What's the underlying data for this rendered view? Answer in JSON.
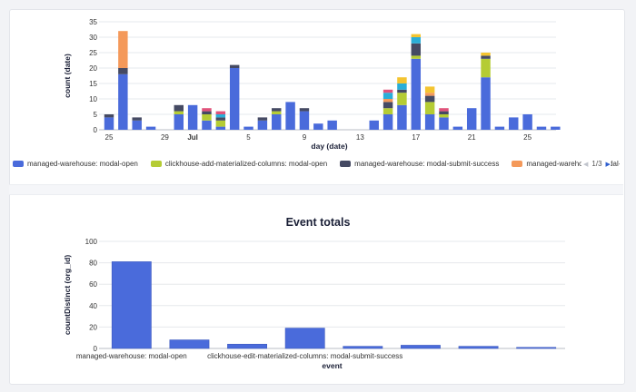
{
  "chart_data": [
    {
      "type": "bar",
      "stacked": true,
      "xlabel": "day (date)",
      "ylabel": "count (date)",
      "ylim": [
        0,
        35
      ],
      "yticks": [
        0,
        5,
        10,
        15,
        20,
        25,
        30,
        35
      ],
      "x_tick_labels": [
        {
          "label": "25",
          "index": 0,
          "bold": false
        },
        {
          "label": "29",
          "index": 4,
          "bold": false
        },
        {
          "label": "Jul",
          "index": 6,
          "bold": true
        },
        {
          "label": "5",
          "index": 10,
          "bold": false
        },
        {
          "label": "9",
          "index": 14,
          "bold": false
        },
        {
          "label": "13",
          "index": 18,
          "bold": false
        },
        {
          "label": "17",
          "index": 22,
          "bold": false
        },
        {
          "label": "21",
          "index": 26,
          "bold": false
        },
        {
          "label": "25",
          "index": 30,
          "bold": false
        }
      ],
      "categories": [
        "Jun 25",
        "Jun 26",
        "Jun 27",
        "Jun 28",
        "Jun 29",
        "Jun 30",
        "Jul 1",
        "Jul 2",
        "Jul 3",
        "Jul 4",
        "Jul 5",
        "Jul 6",
        "Jul 7",
        "Jul 8",
        "Jul 9",
        "Jul 10",
        "Jul 11",
        "Jul 12",
        "Jul 13",
        "Jul 14",
        "Jul 15",
        "Jul 16",
        "Jul 17",
        "Jul 18",
        "Jul 19",
        "Jul 20",
        "Jul 21",
        "Jul 22",
        "Jul 23",
        "Jul 24",
        "Jul 25",
        "Jul 26",
        "Jul 27"
      ],
      "series": [
        {
          "name": "managed-warehouse: modal-open",
          "color": "#4a6bdb",
          "values": [
            4,
            18,
            3,
            1,
            0,
            5,
            8,
            3,
            1,
            20,
            1,
            3,
            5,
            9,
            6,
            2,
            3,
            0,
            0,
            3,
            5,
            8,
            23,
            5,
            4,
            1,
            7,
            17,
            1,
            4,
            5,
            1,
            1
          ]
        },
        {
          "name": "clickhouse-add-materialized-columns: modal-open",
          "color": "#b5cc34",
          "values": [
            0,
            0,
            0,
            0,
            0,
            1,
            0,
            2,
            2,
            0,
            0,
            0,
            1,
            0,
            0,
            0,
            0,
            0,
            0,
            0,
            2,
            4,
            1,
            4,
            1,
            0,
            0,
            6,
            0,
            0,
            0,
            0,
            0
          ]
        },
        {
          "name": "managed-warehouse: modal-submit-success",
          "color": "#454a63",
          "values": [
            1,
            2,
            1,
            0,
            0,
            2,
            0,
            1,
            1,
            1,
            0,
            1,
            1,
            0,
            1,
            0,
            0,
            0,
            0,
            0,
            2,
            1,
            4,
            2,
            1,
            0,
            0,
            1,
            0,
            0,
            0,
            0,
            0
          ]
        },
        {
          "name": "managed-warehouse: modal-submit-error",
          "color": "#f4995a",
          "values": [
            0,
            12,
            0,
            0,
            0,
            0,
            0,
            0,
            0,
            0,
            0,
            0,
            0,
            0,
            0,
            0,
            0,
            0,
            0,
            0,
            1,
            0,
            0,
            1,
            0,
            0,
            0,
            0,
            0,
            0,
            0,
            0,
            0
          ]
        },
        {
          "name": "",
          "color": "#2aaed8",
          "values": [
            0,
            0,
            0,
            0,
            0,
            0,
            0,
            0,
            1,
            0,
            0,
            0,
            0,
            0,
            0,
            0,
            0,
            0,
            0,
            0,
            2,
            2,
            2,
            0,
            0,
            0,
            0,
            0,
            0,
            0,
            0,
            0,
            0
          ]
        },
        {
          "name": "",
          "color": "#f4c430",
          "values": [
            0,
            0,
            0,
            0,
            0,
            0,
            0,
            0,
            0,
            0,
            0,
            0,
            0,
            0,
            0,
            0,
            0,
            0,
            0,
            0,
            0,
            2,
            1,
            2,
            0,
            0,
            0,
            1,
            0,
            0,
            0,
            0,
            0
          ]
        },
        {
          "name": "",
          "color": "#e0527a",
          "values": [
            0,
            0,
            0,
            0,
            0,
            0,
            0,
            1,
            1,
            0,
            0,
            0,
            0,
            0,
            0,
            0,
            0,
            0,
            0,
            0,
            1,
            0,
            0,
            0,
            1,
            0,
            0,
            0,
            0,
            0,
            0,
            0,
            0
          ]
        }
      ]
    },
    {
      "type": "bar",
      "title": "Event totals",
      "xlabel": "event",
      "ylabel": "countDistinct (org_id)",
      "ylim": [
        0,
        100
      ],
      "yticks": [
        0,
        20,
        40,
        60,
        80,
        100
      ],
      "color": "#4a6bdb",
      "categories": [
        "managed-warehouse: modal-open",
        "",
        "",
        "clickhouse-edit-materialized-columns: modal-submit-success",
        "",
        "",
        "",
        ""
      ],
      "values": [
        81,
        8,
        4,
        19,
        2,
        3,
        2,
        1
      ]
    }
  ],
  "legend": {
    "items": [
      {
        "label": "managed-warehouse: modal-open",
        "color": "#4a6bdb"
      },
      {
        "label": "clickhouse-add-materialized-columns: modal-open",
        "color": "#b5cc34"
      },
      {
        "label": "managed-warehouse: modal-submit-success",
        "color": "#454a63"
      },
      {
        "label": "managed-warehouse: modal-submit-error",
        "color": "#f4995a"
      },
      {
        "label": "",
        "color": "#2aaed8"
      }
    ],
    "page": "1/3"
  }
}
